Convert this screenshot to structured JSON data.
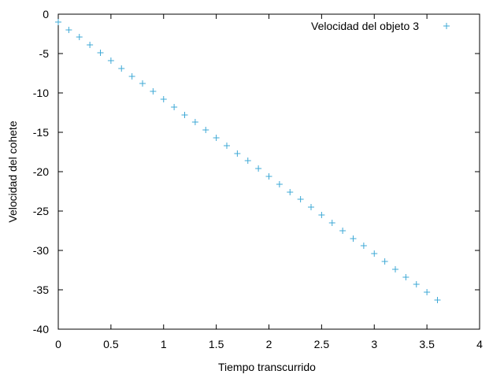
{
  "chart_data": {
    "type": "scatter",
    "title": "",
    "xlabel": "Tiempo transcurrido",
    "ylabel": "Velocidad del cohete",
    "xlim": [
      0,
      4
    ],
    "ylim": [
      -40,
      0
    ],
    "xticks": [
      "0",
      "0.5",
      "1",
      "1.5",
      "2",
      "2.5",
      "3",
      "3.5",
      "4"
    ],
    "yticks": [
      "0",
      "-5",
      "-10",
      "-15",
      "-20",
      "-25",
      "-30",
      "-35",
      "-40"
    ],
    "grid": false,
    "legend_position": "top-right",
    "marker": "plus",
    "series": [
      {
        "name": "Velocidad del objeto 3",
        "color": "#3ea8d6",
        "x": [
          0,
          0.1,
          0.2,
          0.3,
          0.4,
          0.5,
          0.6,
          0.7,
          0.8,
          0.9,
          1.0,
          1.1,
          1.2,
          1.3,
          1.4,
          1.5,
          1.6,
          1.7,
          1.8,
          1.9,
          2.0,
          2.1,
          2.2,
          2.3,
          2.4,
          2.5,
          2.6,
          2.7,
          2.8,
          2.9,
          3.0,
          3.1,
          3.2,
          3.3,
          3.4,
          3.5,
          3.6
        ],
        "y": [
          -1.0,
          -2.0,
          -2.9,
          -3.9,
          -4.9,
          -5.9,
          -6.9,
          -7.9,
          -8.8,
          -9.8,
          -10.8,
          -11.8,
          -12.8,
          -13.7,
          -14.7,
          -15.7,
          -16.7,
          -17.7,
          -18.6,
          -19.6,
          -20.6,
          -21.6,
          -22.6,
          -23.5,
          -24.5,
          -25.5,
          -26.5,
          -27.5,
          -28.5,
          -29.4,
          -30.4,
          -31.4,
          -32.4,
          -33.4,
          -34.3,
          -35.3,
          -36.3
        ]
      }
    ]
  }
}
